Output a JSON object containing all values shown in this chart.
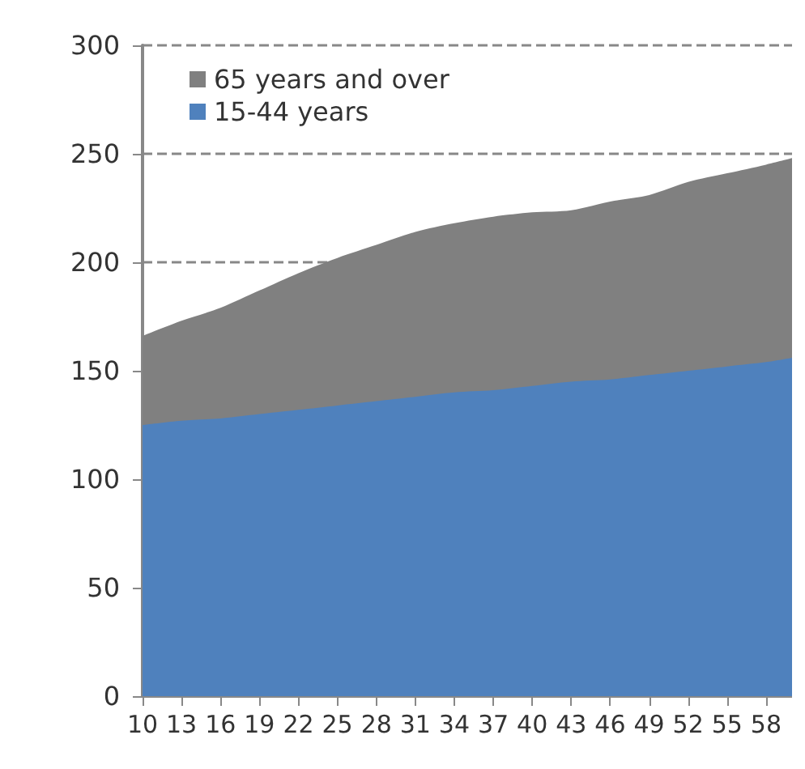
{
  "chart_data": {
    "type": "area",
    "stacked": true,
    "x": [
      10,
      13,
      16,
      19,
      22,
      25,
      28,
      31,
      34,
      37,
      40,
      43,
      46,
      49,
      52,
      55,
      58,
      60
    ],
    "series": [
      {
        "name": "15-44 years",
        "color": "#4f81bd",
        "values": [
          125,
          127,
          128,
          130,
          132,
          134,
          136,
          138,
          140,
          141,
          143,
          145,
          146,
          148,
          150,
          152,
          154,
          156
        ]
      },
      {
        "name": "65 years and over",
        "color": "#808080",
        "values": [
          41,
          46,
          51,
          57,
          63,
          68,
          72,
          76,
          78,
          80,
          80,
          79,
          82,
          83,
          87,
          89,
          91,
          92
        ]
      }
    ],
    "xlim": [
      10,
      60
    ],
    "xticks": [
      10,
      13,
      16,
      19,
      22,
      25,
      28,
      31,
      34,
      37,
      40,
      43,
      46,
      49,
      52,
      55,
      58
    ],
    "ylim": [
      0,
      300
    ],
    "yticks": [
      0,
      50,
      100,
      150,
      200,
      250,
      300
    ],
    "grid": "y",
    "legend": "top left"
  }
}
